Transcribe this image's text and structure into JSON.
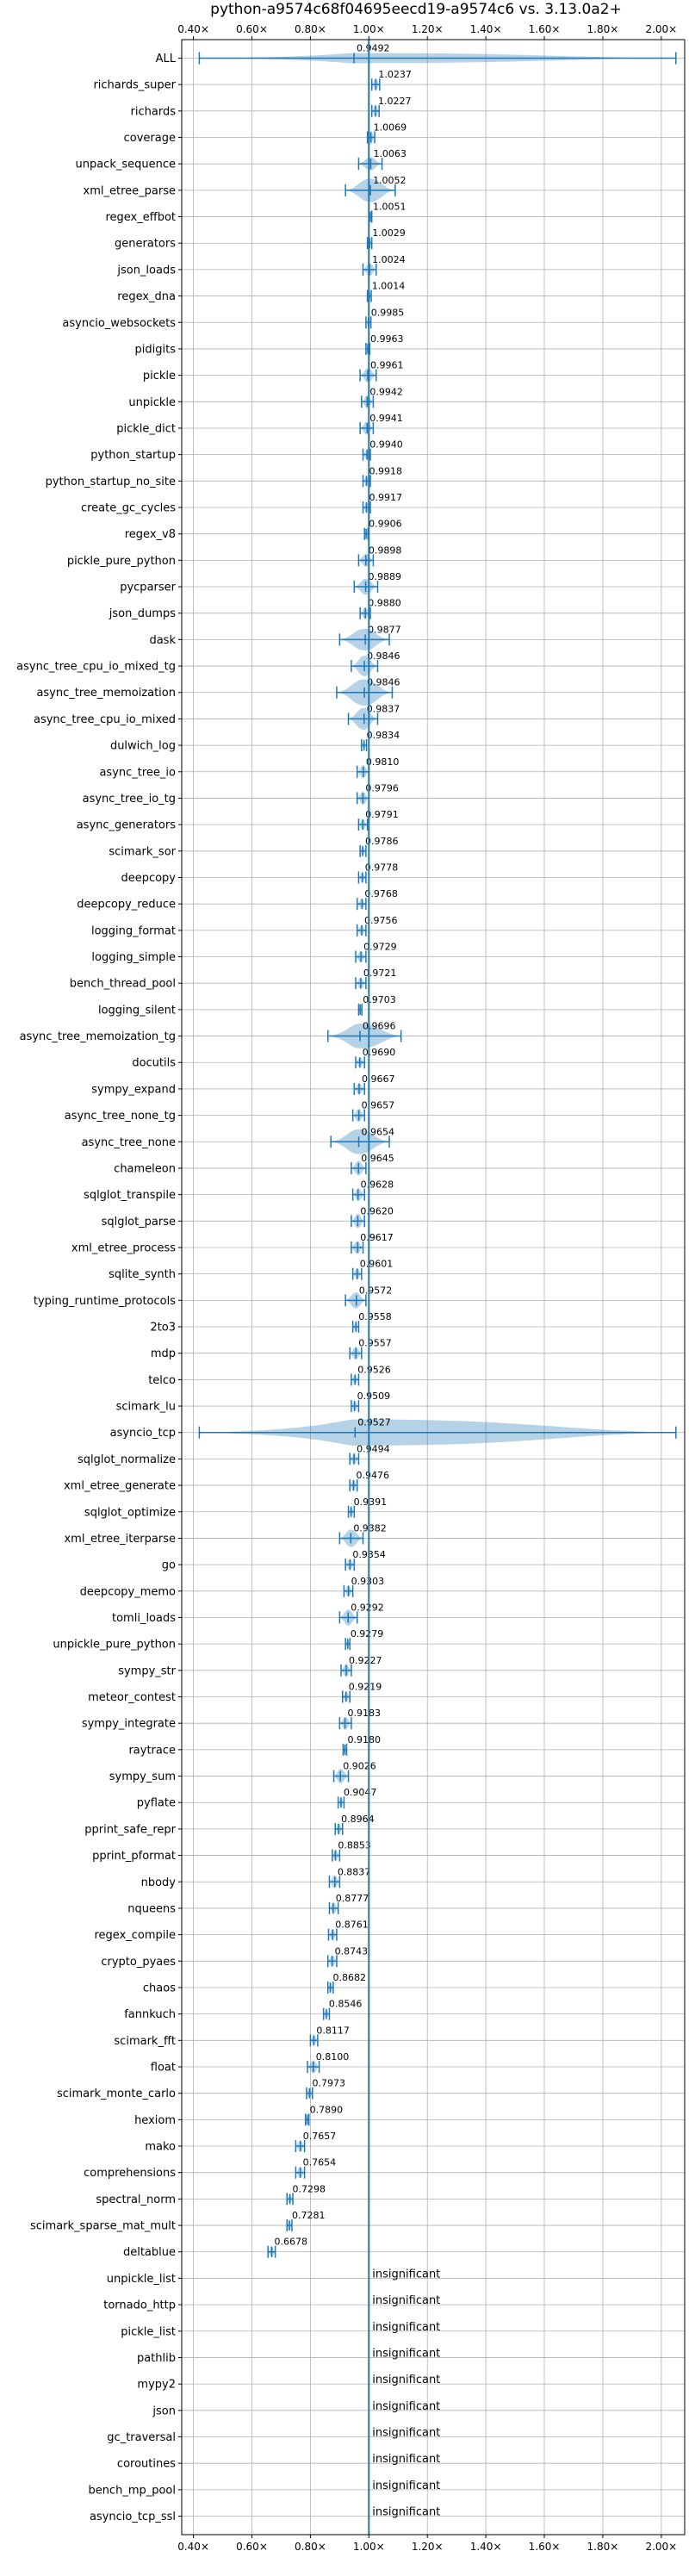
{
  "chart_data": {
    "type": "violin",
    "title": "python-a9574c68f04695eecd19-a9574c6 vs. 3.13.0a2+",
    "xticks": [
      0.4,
      0.6,
      0.8,
      1.0,
      1.2,
      1.4,
      1.6,
      1.8,
      2.0
    ],
    "xtick_labels": [
      "0.40×",
      "0.60×",
      "0.80×",
      "1.00×",
      "1.20×",
      "1.40×",
      "1.60×",
      "1.80×",
      "2.00×"
    ],
    "xlim": [
      0.36,
      2.08
    ],
    "reference_line": 1.0,
    "grid": true,
    "insignificant_label": "insignificant",
    "benchmarks": [
      {
        "name": "ALL",
        "value": 0.9492,
        "label": "0.9492",
        "lo": 0.42,
        "hi": 2.05,
        "width": 0.35
      },
      {
        "name": "richards_super",
        "value": 1.0237,
        "label": "1.0237",
        "lo": 1.01,
        "hi": 1.037,
        "width": 0.45
      },
      {
        "name": "richards",
        "value": 1.0227,
        "label": "1.0227",
        "lo": 1.01,
        "hi": 1.035,
        "width": 0.45
      },
      {
        "name": "coverage",
        "value": 1.0069,
        "label": "1.0069",
        "lo": 0.995,
        "hi": 1.02,
        "width": 0.45
      },
      {
        "name": "unpack_sequence",
        "value": 1.0063,
        "label": "1.0063",
        "lo": 0.965,
        "hi": 1.045,
        "width": 0.45
      },
      {
        "name": "xml_etree_parse",
        "value": 1.0052,
        "label": "1.0052",
        "lo": 0.92,
        "hi": 1.09,
        "width": 0.8
      },
      {
        "name": "regex_effbot",
        "value": 1.0051,
        "label": "1.0051",
        "lo": 1.0,
        "hi": 1.01,
        "width": 0.3
      },
      {
        "name": "generators",
        "value": 1.0029,
        "label": "1.0029",
        "lo": 0.995,
        "hi": 1.01,
        "width": 0.3
      },
      {
        "name": "json_loads",
        "value": 1.0024,
        "label": "1.0024",
        "lo": 0.98,
        "hi": 1.025,
        "width": 0.45
      },
      {
        "name": "regex_dna",
        "value": 1.0014,
        "label": "1.0014",
        "lo": 0.995,
        "hi": 1.008,
        "width": 0.3
      },
      {
        "name": "asyncio_websockets",
        "value": 0.9985,
        "label": "0.9985",
        "lo": 0.99,
        "hi": 1.007,
        "width": 0.3
      },
      {
        "name": "pidigits",
        "value": 0.9963,
        "label": "0.9963",
        "lo": 0.99,
        "hi": 1.003,
        "width": 0.3
      },
      {
        "name": "pickle",
        "value": 0.9961,
        "label": "0.9961",
        "lo": 0.97,
        "hi": 1.025,
        "width": 0.5
      },
      {
        "name": "unpickle",
        "value": 0.9942,
        "label": "0.9942",
        "lo": 0.975,
        "hi": 1.015,
        "width": 0.45
      },
      {
        "name": "pickle_dict",
        "value": 0.9941,
        "label": "0.9941",
        "lo": 0.97,
        "hi": 1.015,
        "width": 0.45
      },
      {
        "name": "python_startup",
        "value": 0.994,
        "label": "0.9940",
        "lo": 0.98,
        "hi": 1.005,
        "width": 0.35
      },
      {
        "name": "python_startup_no_site",
        "value": 0.9918,
        "label": "0.9918",
        "lo": 0.98,
        "hi": 1.005,
        "width": 0.35
      },
      {
        "name": "create_gc_cycles",
        "value": 0.9917,
        "label": "0.9917",
        "lo": 0.98,
        "hi": 1.005,
        "width": 0.35
      },
      {
        "name": "regex_v8",
        "value": 0.9906,
        "label": "0.9906",
        "lo": 0.985,
        "hi": 0.997,
        "width": 0.3
      },
      {
        "name": "pickle_pure_python",
        "value": 0.9898,
        "label": "0.9898",
        "lo": 0.965,
        "hi": 1.015,
        "width": 0.45
      },
      {
        "name": "pycparser",
        "value": 0.9889,
        "label": "0.9889",
        "lo": 0.95,
        "hi": 1.03,
        "width": 0.55
      },
      {
        "name": "json_dumps",
        "value": 0.988,
        "label": "0.9880",
        "lo": 0.97,
        "hi": 1.005,
        "width": 0.4
      },
      {
        "name": "dask",
        "value": 0.9877,
        "label": "0.9877",
        "lo": 0.9,
        "hi": 1.07,
        "width": 0.75
      },
      {
        "name": "async_tree_cpu_io_mixed_tg",
        "value": 0.9846,
        "label": "0.9846",
        "lo": 0.94,
        "hi": 1.03,
        "width": 0.7
      },
      {
        "name": "async_tree_memoization",
        "value": 0.9846,
        "label": "0.9846",
        "lo": 0.89,
        "hi": 1.08,
        "width": 0.9
      },
      {
        "name": "async_tree_cpu_io_mixed",
        "value": 0.9837,
        "label": "0.9837",
        "lo": 0.93,
        "hi": 1.03,
        "width": 0.75
      },
      {
        "name": "dulwich_log",
        "value": 0.9834,
        "label": "0.9834",
        "lo": 0.975,
        "hi": 0.992,
        "width": 0.3
      },
      {
        "name": "async_tree_io",
        "value": 0.981,
        "label": "0.9810",
        "lo": 0.96,
        "hi": 1.0,
        "width": 0.45
      },
      {
        "name": "async_tree_io_tg",
        "value": 0.9796,
        "label": "0.9796",
        "lo": 0.96,
        "hi": 1.0,
        "width": 0.45
      },
      {
        "name": "async_generators",
        "value": 0.9791,
        "label": "0.9791",
        "lo": 0.965,
        "hi": 0.995,
        "width": 0.35
      },
      {
        "name": "scimark_sor",
        "value": 0.9786,
        "label": "0.9786",
        "lo": 0.97,
        "hi": 0.99,
        "width": 0.3
      },
      {
        "name": "deepcopy",
        "value": 0.9778,
        "label": "0.9778",
        "lo": 0.965,
        "hi": 0.99,
        "width": 0.35
      },
      {
        "name": "deepcopy_reduce",
        "value": 0.9768,
        "label": "0.9768",
        "lo": 0.96,
        "hi": 0.99,
        "width": 0.35
      },
      {
        "name": "logging_format",
        "value": 0.9756,
        "label": "0.9756",
        "lo": 0.96,
        "hi": 0.99,
        "width": 0.35
      },
      {
        "name": "logging_simple",
        "value": 0.9729,
        "label": "0.9729",
        "lo": 0.955,
        "hi": 0.99,
        "width": 0.4
      },
      {
        "name": "bench_thread_pool",
        "value": 0.9721,
        "label": "0.9721",
        "lo": 0.955,
        "hi": 0.99,
        "width": 0.4
      },
      {
        "name": "logging_silent",
        "value": 0.9703,
        "label": "0.9703",
        "lo": 0.965,
        "hi": 0.976,
        "width": 0.3
      },
      {
        "name": "async_tree_memoization_tg",
        "value": 0.9696,
        "label": "0.9696",
        "lo": 0.86,
        "hi": 1.11,
        "width": 0.85
      },
      {
        "name": "docutils",
        "value": 0.969,
        "label": "0.9690",
        "lo": 0.955,
        "hi": 0.985,
        "width": 0.35
      },
      {
        "name": "sympy_expand",
        "value": 0.9667,
        "label": "0.9667",
        "lo": 0.95,
        "hi": 0.985,
        "width": 0.4
      },
      {
        "name": "async_tree_none_tg",
        "value": 0.9657,
        "label": "0.9657",
        "lo": 0.945,
        "hi": 0.985,
        "width": 0.45
      },
      {
        "name": "async_tree_none",
        "value": 0.9654,
        "label": "0.9654",
        "lo": 0.87,
        "hi": 1.07,
        "width": 0.85
      },
      {
        "name": "chameleon",
        "value": 0.9645,
        "label": "0.9645",
        "lo": 0.94,
        "hi": 0.99,
        "width": 0.5
      },
      {
        "name": "sqlglot_transpile",
        "value": 0.9628,
        "label": "0.9628",
        "lo": 0.945,
        "hi": 0.985,
        "width": 0.45
      },
      {
        "name": "sqlglot_parse",
        "value": 0.962,
        "label": "0.9620",
        "lo": 0.94,
        "hi": 0.985,
        "width": 0.5
      },
      {
        "name": "xml_etree_process",
        "value": 0.9617,
        "label": "0.9617",
        "lo": 0.94,
        "hi": 0.98,
        "width": 0.45
      },
      {
        "name": "sqlite_synth",
        "value": 0.9601,
        "label": "0.9601",
        "lo": 0.945,
        "hi": 0.975,
        "width": 0.4
      },
      {
        "name": "typing_runtime_protocols",
        "value": 0.9572,
        "label": "0.9572",
        "lo": 0.92,
        "hi": 0.99,
        "width": 0.55
      },
      {
        "name": "2to3",
        "value": 0.9558,
        "label": "0.9558",
        "lo": 0.945,
        "hi": 0.965,
        "width": 0.35
      },
      {
        "name": "mdp",
        "value": 0.9557,
        "label": "0.9557",
        "lo": 0.935,
        "hi": 0.975,
        "width": 0.45
      },
      {
        "name": "telco",
        "value": 0.9526,
        "label": "0.9526",
        "lo": 0.94,
        "hi": 0.965,
        "width": 0.35
      },
      {
        "name": "scimark_lu",
        "value": 0.9509,
        "label": "0.9509",
        "lo": 0.94,
        "hi": 0.965,
        "width": 0.35
      },
      {
        "name": "asyncio_tcp",
        "value": 0.9527,
        "label": "0.9527",
        "lo": 0.42,
        "hi": 2.05,
        "width": 0.9
      },
      {
        "name": "sqlglot_normalize",
        "value": 0.9494,
        "label": "0.9494",
        "lo": 0.935,
        "hi": 0.965,
        "width": 0.4
      },
      {
        "name": "xml_etree_generate",
        "value": 0.9476,
        "label": "0.9476",
        "lo": 0.935,
        "hi": 0.96,
        "width": 0.4
      },
      {
        "name": "sqlglot_optimize",
        "value": 0.9391,
        "label": "0.9391",
        "lo": 0.93,
        "hi": 0.95,
        "width": 0.35
      },
      {
        "name": "xml_etree_iterparse",
        "value": 0.9382,
        "label": "0.9382",
        "lo": 0.9,
        "hi": 0.98,
        "width": 0.6
      },
      {
        "name": "go",
        "value": 0.9354,
        "label": "0.9354",
        "lo": 0.92,
        "hi": 0.95,
        "width": 0.4
      },
      {
        "name": "deepcopy_memo",
        "value": 0.9303,
        "label": "0.9303",
        "lo": 0.915,
        "hi": 0.945,
        "width": 0.4
      },
      {
        "name": "tomli_loads",
        "value": 0.9292,
        "label": "0.9292",
        "lo": 0.9,
        "hi": 0.96,
        "width": 0.55
      },
      {
        "name": "unpickle_pure_python",
        "value": 0.9279,
        "label": "0.9279",
        "lo": 0.92,
        "hi": 0.935,
        "width": 0.35
      },
      {
        "name": "sympy_str",
        "value": 0.9227,
        "label": "0.9227",
        "lo": 0.905,
        "hi": 0.94,
        "width": 0.45
      },
      {
        "name": "meteor_contest",
        "value": 0.9219,
        "label": "0.9219",
        "lo": 0.91,
        "hi": 0.935,
        "width": 0.35
      },
      {
        "name": "sympy_integrate",
        "value": 0.9183,
        "label": "0.9183",
        "lo": 0.9,
        "hi": 0.94,
        "width": 0.45
      },
      {
        "name": "raytrace",
        "value": 0.918,
        "label": "0.9180",
        "lo": 0.912,
        "hi": 0.924,
        "width": 0.3
      },
      {
        "name": "sympy_sum",
        "value": 0.9026,
        "label": "0.9026",
        "lo": 0.88,
        "hi": 0.93,
        "width": 0.5
      },
      {
        "name": "pyflate",
        "value": 0.9047,
        "label": "0.9047",
        "lo": 0.895,
        "hi": 0.915,
        "width": 0.35
      },
      {
        "name": "pprint_safe_repr",
        "value": 0.8964,
        "label": "0.8964",
        "lo": 0.885,
        "hi": 0.91,
        "width": 0.4
      },
      {
        "name": "pprint_pformat",
        "value": 0.8853,
        "label": "0.8853",
        "lo": 0.875,
        "hi": 0.9,
        "width": 0.4
      },
      {
        "name": "nbody",
        "value": 0.8837,
        "label": "0.8837",
        "lo": 0.865,
        "hi": 0.9,
        "width": 0.45
      },
      {
        "name": "nqueens",
        "value": 0.8777,
        "label": "0.8777",
        "lo": 0.865,
        "hi": 0.895,
        "width": 0.4
      },
      {
        "name": "regex_compile",
        "value": 0.8761,
        "label": "0.8761",
        "lo": 0.862,
        "hi": 0.89,
        "width": 0.4
      },
      {
        "name": "crypto_pyaes",
        "value": 0.8743,
        "label": "0.8743",
        "lo": 0.86,
        "hi": 0.89,
        "width": 0.4
      },
      {
        "name": "chaos",
        "value": 0.8682,
        "label": "0.8682",
        "lo": 0.86,
        "hi": 0.878,
        "width": 0.35
      },
      {
        "name": "fannkuch",
        "value": 0.8546,
        "label": "0.8546",
        "lo": 0.845,
        "hi": 0.865,
        "width": 0.35
      },
      {
        "name": "scimark_fft",
        "value": 0.8117,
        "label": "0.8117",
        "lo": 0.8,
        "hi": 0.825,
        "width": 0.35
      },
      {
        "name": "float",
        "value": 0.81,
        "label": "0.8100",
        "lo": 0.79,
        "hi": 0.83,
        "width": 0.45
      },
      {
        "name": "scimark_monte_carlo",
        "value": 0.7973,
        "label": "0.7973",
        "lo": 0.787,
        "hi": 0.807,
        "width": 0.35
      },
      {
        "name": "hexiom",
        "value": 0.789,
        "label": "0.7890",
        "lo": 0.783,
        "hi": 0.795,
        "width": 0.3
      },
      {
        "name": "mako",
        "value": 0.7657,
        "label": "0.7657",
        "lo": 0.75,
        "hi": 0.78,
        "width": 0.4
      },
      {
        "name": "comprehensions",
        "value": 0.7654,
        "label": "0.7654",
        "lo": 0.75,
        "hi": 0.78,
        "width": 0.4
      },
      {
        "name": "spectral_norm",
        "value": 0.7298,
        "label": "0.7298",
        "lo": 0.72,
        "hi": 0.74,
        "width": 0.35
      },
      {
        "name": "scimark_sparse_mat_mult",
        "value": 0.7281,
        "label": "0.7281",
        "lo": 0.72,
        "hi": 0.737,
        "width": 0.35
      },
      {
        "name": "deltablue",
        "value": 0.6678,
        "label": "0.6678",
        "lo": 0.655,
        "hi": 0.68,
        "width": 0.4
      },
      {
        "name": "unpickle_list",
        "value": null,
        "label": "insignificant"
      },
      {
        "name": "tornado_http",
        "value": null,
        "label": "insignificant"
      },
      {
        "name": "pickle_list",
        "value": null,
        "label": "insignificant"
      },
      {
        "name": "pathlib",
        "value": null,
        "label": "insignificant"
      },
      {
        "name": "mypy2",
        "value": null,
        "label": "insignificant"
      },
      {
        "name": "json",
        "value": null,
        "label": "insignificant"
      },
      {
        "name": "gc_traversal",
        "value": null,
        "label": "insignificant"
      },
      {
        "name": "coroutines",
        "value": null,
        "label": "insignificant"
      },
      {
        "name": "bench_mp_pool",
        "value": null,
        "label": "insignificant"
      },
      {
        "name": "asyncio_tcp_ssl",
        "value": null,
        "label": "insignificant"
      }
    ]
  }
}
